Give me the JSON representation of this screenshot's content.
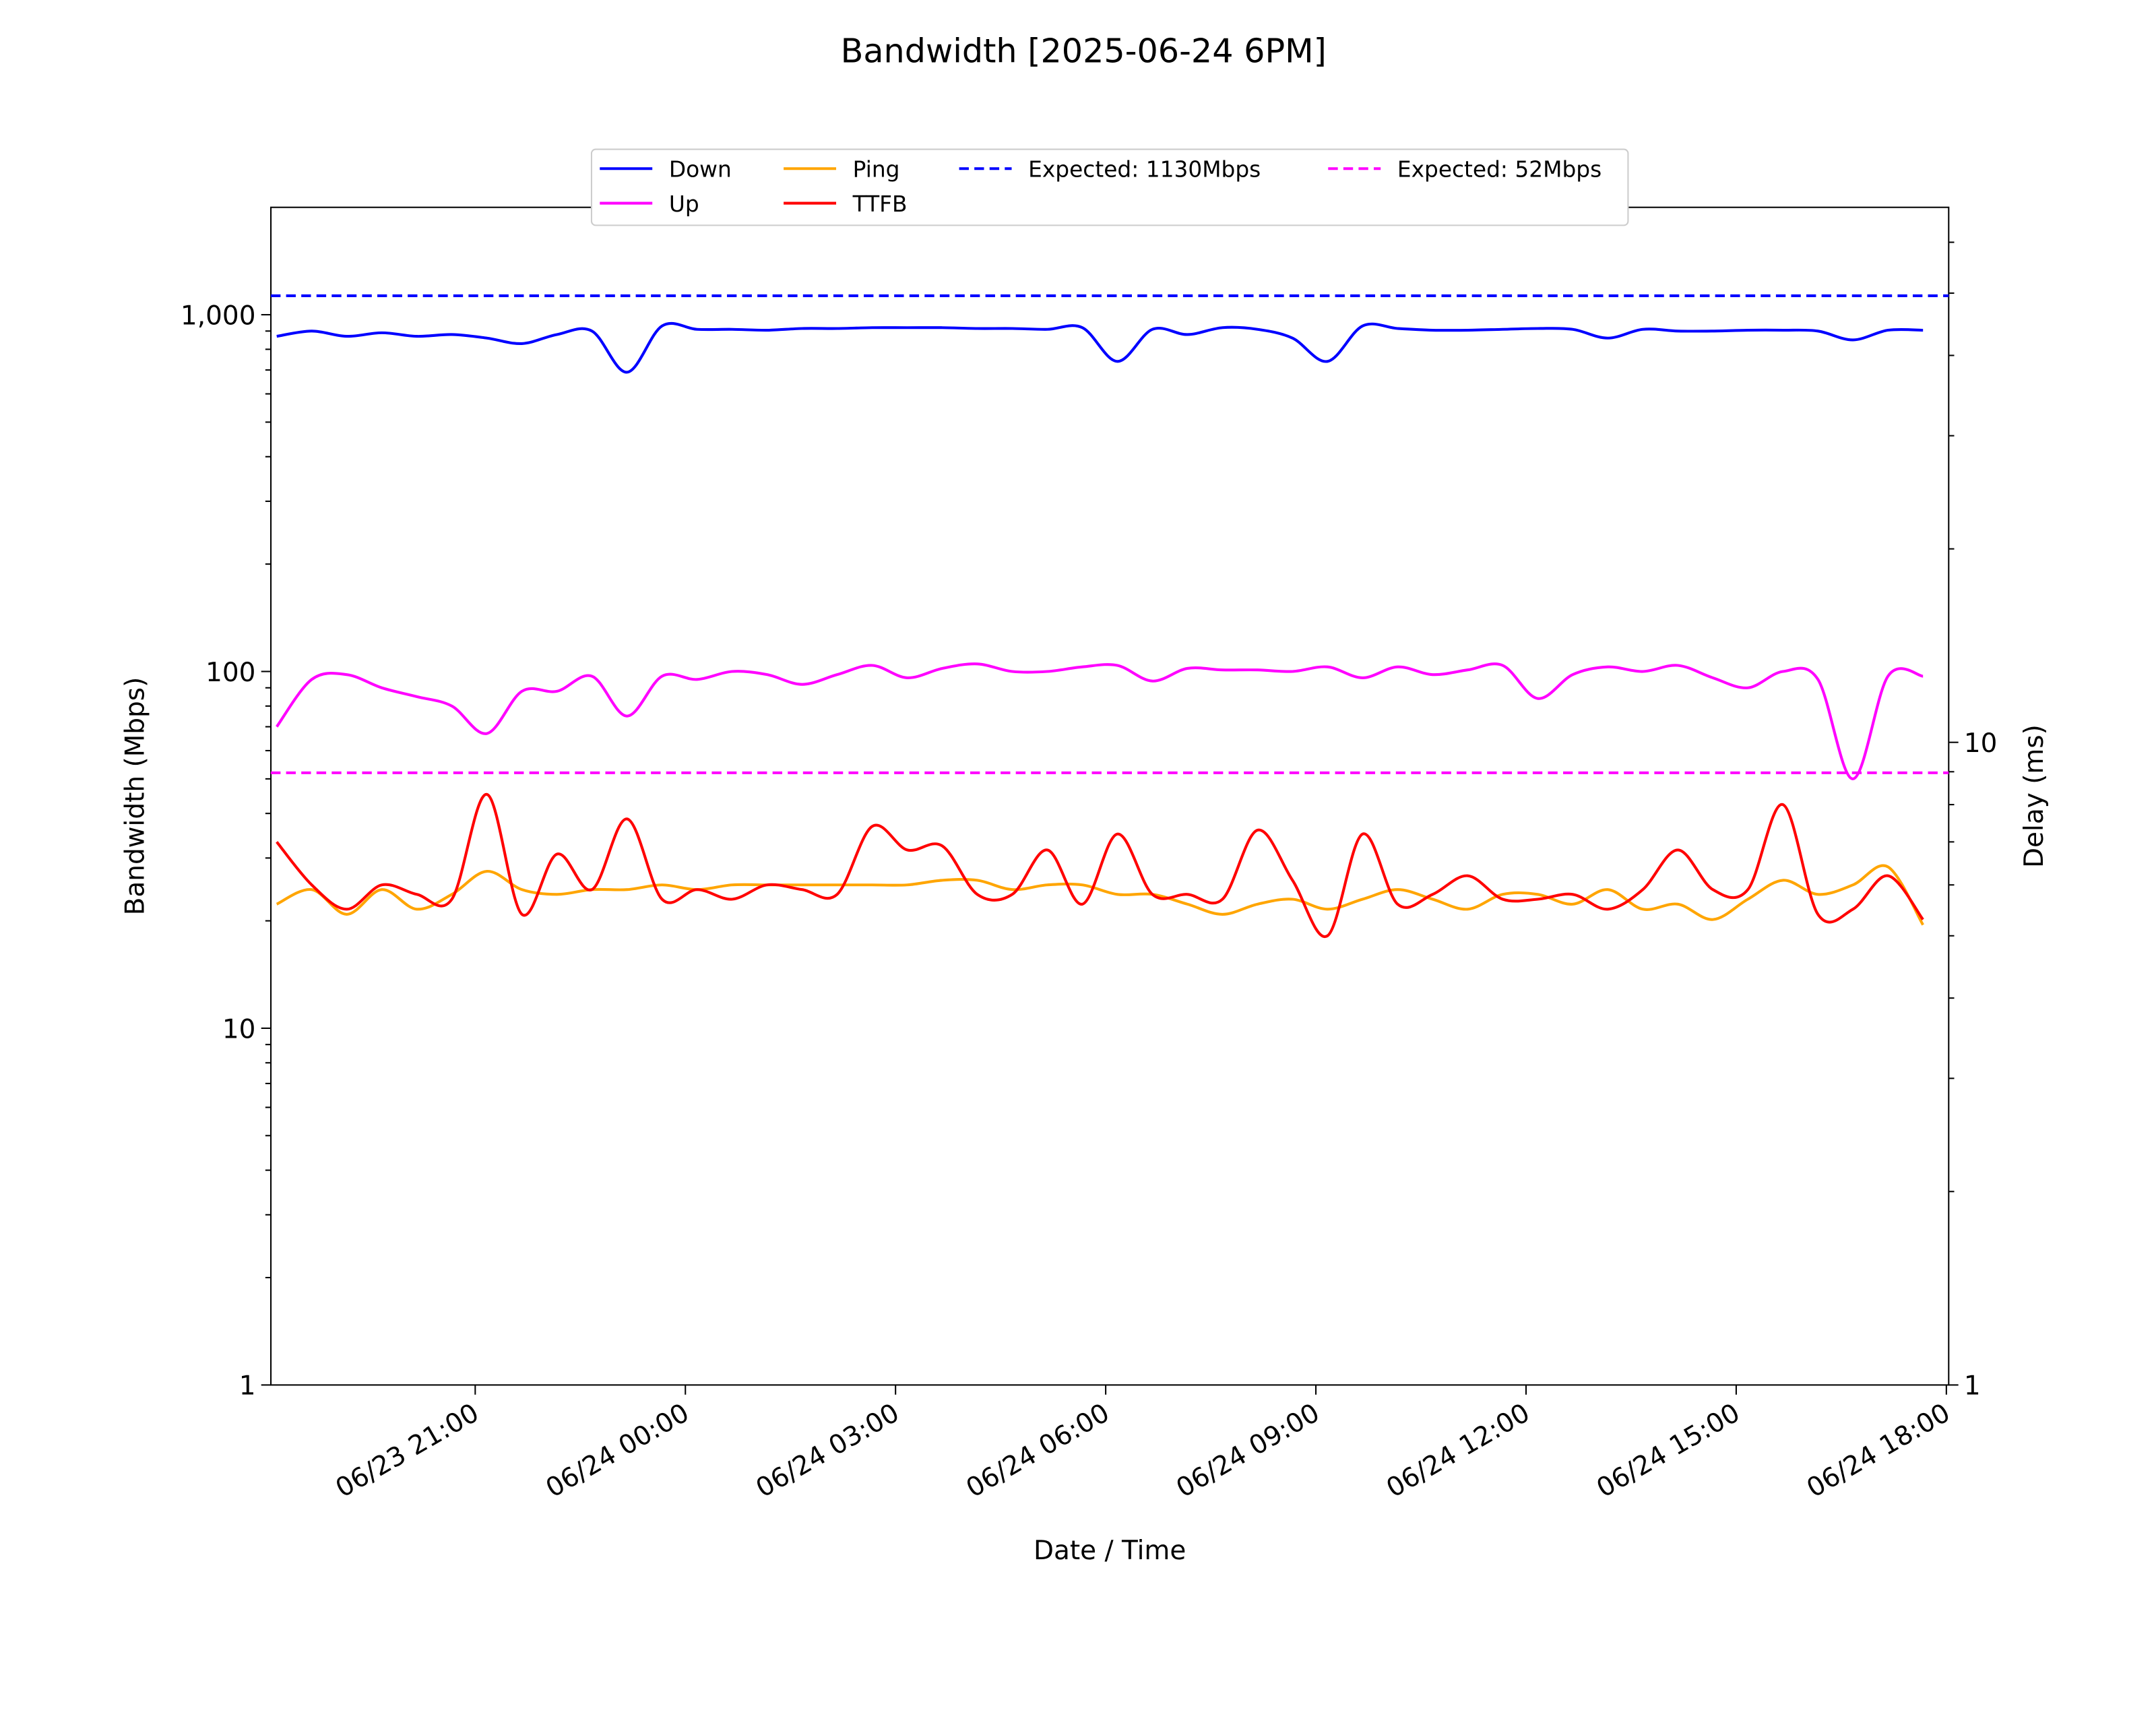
{
  "chart_data": {
    "type": "line",
    "title": "Bandwidth [2025-06-24 6PM]",
    "xlabel": "Date / Time",
    "ylabel": "Bandwidth (Mbps)",
    "y2label": "Delay (ms)",
    "yscale": "log",
    "y2scale": "log",
    "x": [
      "06/23 18:10",
      "06/23 18:40",
      "06/23 19:10",
      "06/23 19:40",
      "06/23 20:10",
      "06/23 20:40",
      "06/23 21:10",
      "06/23 21:40",
      "06/23 22:10",
      "06/23 22:40",
      "06/23 23:10",
      "06/23 23:40",
      "06/24 00:10",
      "06/24 00:40",
      "06/24 01:10",
      "06/24 01:40",
      "06/24 02:10",
      "06/24 02:40",
      "06/24 03:10",
      "06/24 03:40",
      "06/24 04:10",
      "06/24 04:40",
      "06/24 05:10",
      "06/24 05:40",
      "06/24 06:10",
      "06/24 06:40",
      "06/24 07:10",
      "06/24 07:40",
      "06/24 08:10",
      "06/24 08:40",
      "06/24 09:10",
      "06/24 09:40",
      "06/24 10:10",
      "06/24 10:40",
      "06/24 11:10",
      "06/24 11:40",
      "06/24 12:10",
      "06/24 12:40",
      "06/24 13:10",
      "06/24 13:40",
      "06/24 14:10",
      "06/24 14:40",
      "06/24 15:10",
      "06/24 15:40",
      "06/24 16:10",
      "06/24 16:40",
      "06/24 17:10",
      "06/24 17:40"
    ],
    "xlim": [
      "06/23 18:05",
      "06/24 18:02"
    ],
    "xticks": [
      "06/23 21:00",
      "06/24 00:00",
      "06/24 03:00",
      "06/24 06:00",
      "06/24 09:00",
      "06/24 12:00",
      "06/24 15:00",
      "06/24 18:00"
    ],
    "ylim": [
      1,
      2000
    ],
    "yticks": [
      1,
      10,
      100,
      {
        "value": 1000,
        "label": "1,000"
      }
    ],
    "yminorticks": [
      2,
      3,
      4,
      5,
      6,
      7,
      8,
      9,
      20,
      30,
      40,
      50,
      60,
      70,
      80,
      90,
      200,
      300,
      400,
      500,
      600,
      700,
      800,
      900
    ],
    "y2lim": [
      1,
      68
    ],
    "y2ticks": [
      1,
      10
    ],
    "y2minorticks": [
      2,
      3,
      4,
      5,
      6,
      7,
      8,
      9,
      20,
      30,
      40,
      50,
      60
    ],
    "series": [
      {
        "name": "Down",
        "color": "#0000ff",
        "values": [
          870,
          900,
          870,
          890,
          870,
          880,
          860,
          830,
          880,
          900,
          690,
          930,
          910,
          910,
          905,
          915,
          915,
          920,
          920,
          920,
          915,
          915,
          910,
          920,
          740,
          910,
          880,
          920,
          910,
          860,
          740,
          930,
          915,
          905,
          905,
          910,
          915,
          910,
          860,
          910,
          900,
          900,
          905,
          905,
          900,
          850,
          905,
          905
        ]
      },
      {
        "name": "Up",
        "color": "#ff00ff",
        "values": [
          70,
          95,
          98,
          90,
          85,
          80,
          67,
          88,
          88,
          97,
          75,
          97,
          95,
          100,
          98,
          92,
          98,
          104,
          96,
          102,
          105,
          100,
          100,
          103,
          104,
          94,
          102,
          101,
          101,
          100,
          103,
          96,
          103,
          98,
          101,
          104,
          84,
          98,
          103,
          100,
          104,
          96,
          90,
          100,
          95,
          50,
          97,
          97
        ]
      },
      {
        "name": "Ping",
        "color": "#ffa500",
        "axis": "y2",
        "values": [
          5.6,
          5.9,
          5.4,
          5.9,
          5.5,
          5.8,
          6.3,
          5.9,
          5.8,
          5.9,
          5.9,
          6.0,
          5.9,
          6.0,
          6.0,
          6.0,
          6.0,
          6.0,
          6.0,
          6.1,
          6.1,
          5.9,
          6.0,
          6.0,
          5.8,
          5.8,
          5.6,
          5.4,
          5.6,
          5.7,
          5.5,
          5.7,
          5.9,
          5.7,
          5.5,
          5.8,
          5.8,
          5.6,
          5.9,
          5.5,
          5.6,
          5.3,
          5.7,
          6.1,
          5.8,
          6.0,
          6.4,
          5.2
        ]
      },
      {
        "name": "TTFB",
        "color": "#ff0000",
        "axis": "y2",
        "values": [
          7.0,
          6.0,
          5.5,
          6.0,
          5.8,
          5.7,
          8.3,
          5.4,
          6.7,
          5.9,
          7.6,
          5.7,
          5.9,
          5.7,
          6.0,
          5.9,
          5.8,
          7.4,
          6.8,
          6.9,
          5.8,
          5.8,
          6.8,
          5.6,
          7.2,
          5.8,
          5.8,
          5.7,
          7.3,
          6.1,
          5.0,
          7.2,
          5.6,
          5.8,
          6.2,
          5.7,
          5.7,
          5.8,
          5.5,
          5.9,
          6.8,
          5.9,
          5.9,
          8.0,
          5.4,
          5.5,
          6.2,
          5.3
        ]
      }
    ],
    "reference_lines": [
      {
        "name": "Expected: 1130Mbps",
        "value": 1130,
        "color": "#0000ff"
      },
      {
        "name": "Expected: 52Mbps",
        "value": 52,
        "color": "#ff00ff"
      }
    ],
    "legend": "upper center"
  }
}
